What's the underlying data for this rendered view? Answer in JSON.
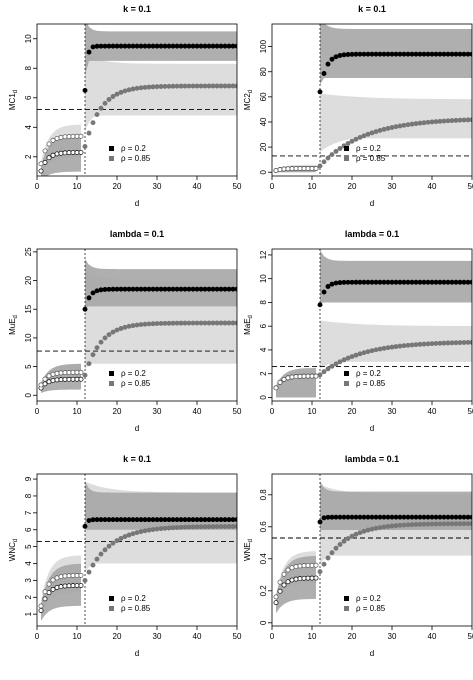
{
  "chart_data": [
    {
      "type": "scatter",
      "title": "k = 0.1",
      "xlabel": "d",
      "ylabel": "MC1",
      "ylabel_sub": "d",
      "xlim": [
        0,
        50
      ],
      "ylim": [
        0.7,
        11
      ],
      "xticks": [
        0,
        10,
        20,
        30,
        40,
        50
      ],
      "yticks": [
        2,
        4,
        6,
        8,
        10
      ],
      "vline": 12,
      "hline": 5.2,
      "series": [
        {
          "name": "ρ = 0.2",
          "color": "#000000",
          "before": 2.3,
          "jump": 6.5,
          "plateau": 9.5,
          "decay": 0.5,
          "band_lo_before": 1.0,
          "band_hi_before": 3.5,
          "band_lo_after": 8.5,
          "band_hi_after": 10.5
        },
        {
          "name": "ρ = 0.85",
          "color": "#777777",
          "before": 3.4,
          "jump": 2.7,
          "plateau": 6.8,
          "decay": 4.0,
          "band_lo_before": 2.0,
          "band_hi_before": 4.2,
          "band_lo_after": 4.8,
          "band_hi_after": 8.3
        }
      ],
      "legend": "bottom-center"
    },
    {
      "type": "scatter",
      "title": "k = 0.1",
      "xlabel": "d",
      "ylabel": "MC2",
      "ylabel_sub": "d",
      "xlim": [
        0,
        50
      ],
      "ylim": [
        -3,
        118
      ],
      "xticks": [
        0,
        10,
        20,
        30,
        40,
        50
      ],
      "yticks": [
        0,
        20,
        40,
        60,
        80,
        100
      ],
      "vline": 12,
      "hline": 13,
      "series": [
        {
          "name": "ρ = 0.2",
          "color": "#000000",
          "before": 3,
          "jump": 64,
          "plateau": 94,
          "decay": 1.5,
          "band_lo_before": 0,
          "band_hi_before": 5,
          "band_lo_after": 75,
          "band_hi_after": 114
        },
        {
          "name": "ρ = 0.85",
          "color": "#777777",
          "before": 3,
          "jump": 5,
          "plateau": 43,
          "decay": 11,
          "band_lo_before": 0,
          "band_hi_before": 6,
          "band_lo_after": 27,
          "band_hi_after": 58
        }
      ],
      "legend": "none"
    },
    {
      "type": "scatter",
      "title": "lambda = 0.1",
      "xlabel": "d",
      "ylabel": "MuE",
      "ylabel_sub": "d",
      "xlim": [
        0,
        50
      ],
      "ylim": [
        -1,
        25.5
      ],
      "xticks": [
        0,
        10,
        20,
        30,
        40,
        50
      ],
      "yticks": [
        0,
        5,
        10,
        15,
        20,
        25
      ],
      "vline": 12,
      "hline": 7.7,
      "series": [
        {
          "name": "ρ = 0.2",
          "color": "#000000",
          "before": 2.8,
          "jump": 15,
          "plateau": 18.5,
          "decay": 1.2,
          "band_lo_before": 1.0,
          "band_hi_before": 5.5,
          "band_lo_after": 15.5,
          "band_hi_after": 22
        },
        {
          "name": "ρ = 0.85",
          "color": "#777777",
          "before": 4.0,
          "jump": 3.5,
          "plateau": 12.6,
          "decay": 4.0,
          "band_lo_before": 2.8,
          "band_hi_before": 5.5,
          "band_lo_after": 5.5,
          "band_hi_after": 20
        }
      ],
      "legend": "bottom-center"
    },
    {
      "type": "scatter",
      "title": "lambda = 0.1",
      "xlabel": "d",
      "ylabel": "MaE",
      "ylabel_sub": "d",
      "xlim": [
        0,
        50
      ],
      "ylim": [
        -0.3,
        12.5
      ],
      "xticks": [
        0,
        10,
        20,
        30,
        40,
        50
      ],
      "yticks": [
        0,
        2,
        4,
        6,
        8,
        10,
        12
      ],
      "vline": 12,
      "hline": 2.6,
      "series": [
        {
          "name": "ρ = 0.2",
          "color": "#000000",
          "before": 1.8,
          "jump": 7.8,
          "plateau": 9.7,
          "decay": 1.2,
          "band_lo_before": 0,
          "band_hi_before": 2.5,
          "band_lo_after": 8.0,
          "band_hi_after": 11.5
        },
        {
          "name": "ρ = 0.85",
          "color": "#777777",
          "before": 1.8,
          "jump": 1.9,
          "plateau": 4.7,
          "decay": 10,
          "band_lo_before": 0,
          "band_hi_before": 2.3,
          "band_lo_after": 3.0,
          "band_hi_after": 6.0
        }
      ],
      "legend": "none"
    },
    {
      "type": "scatter",
      "title": "k = 0.1",
      "xlabel": "d",
      "ylabel": "WNC",
      "ylabel_sub": "d",
      "xlim": [
        0,
        50
      ],
      "ylim": [
        0.3,
        9.3
      ],
      "xticks": [
        0,
        10,
        20,
        30,
        40,
        50
      ],
      "yticks": [
        1,
        2,
        3,
        4,
        5,
        6,
        7,
        8,
        9
      ],
      "vline": 12,
      "hline": 5.3,
      "series": [
        {
          "name": "ρ = 0.2",
          "color": "#000000",
          "before": 2.7,
          "jump": 6.2,
          "plateau": 6.6,
          "decay": 0.5,
          "band_lo_before": 1.5,
          "band_hi_before": 4.0,
          "band_lo_after": 6.0,
          "band_hi_after": 8.2
        },
        {
          "name": "ρ = 0.85",
          "color": "#777777",
          "before": 3.3,
          "jump": 3.0,
          "plateau": 6.2,
          "decay": 6.0,
          "band_lo_before": 2.3,
          "band_hi_before": 4.5,
          "band_lo_after": 4.0,
          "band_hi_after": 8.2
        }
      ],
      "legend": "bottom-center"
    },
    {
      "type": "scatter",
      "title": "lambda = 0.1",
      "xlabel": "d",
      "ylabel": "WNE",
      "ylabel_sub": "d",
      "xlim": [
        0,
        50
      ],
      "ylim": [
        -0.02,
        0.93
      ],
      "xticks": [
        0,
        10,
        20,
        30,
        40,
        50
      ],
      "yticks": [
        0.0,
        0.2,
        0.4,
        0.6,
        0.8
      ],
      "vline": 12,
      "hline": 0.53,
      "series": [
        {
          "name": "ρ = 0.2",
          "color": "#000000",
          "before": 0.28,
          "jump": 0.63,
          "plateau": 0.66,
          "decay": 0.5,
          "band_lo_before": 0.15,
          "band_hi_before": 0.42,
          "band_lo_after": 0.58,
          "band_hi_after": 0.82
        },
        {
          "name": "ρ = 0.85",
          "color": "#777777",
          "before": 0.36,
          "jump": 0.32,
          "plateau": 0.62,
          "decay": 6.0,
          "band_lo_before": 0.25,
          "band_hi_before": 0.45,
          "band_lo_after": 0.42,
          "band_hi_after": 0.8
        }
      ],
      "legend": "bottom-center"
    }
  ]
}
